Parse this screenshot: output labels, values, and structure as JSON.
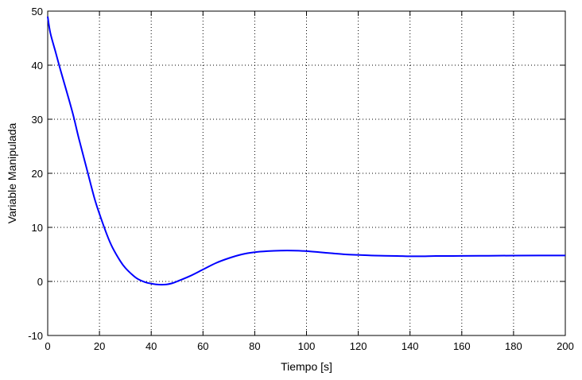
{
  "chart_data": {
    "type": "line",
    "title": "",
    "xlabel": "Tiempo [s]",
    "ylabel": "Variable Manipulada",
    "xlim": [
      0,
      200
    ],
    "ylim": [
      -10,
      50
    ],
    "xticks": [
      0,
      20,
      40,
      60,
      80,
      100,
      120,
      140,
      160,
      180,
      200
    ],
    "yticks": [
      -10,
      0,
      10,
      20,
      30,
      40,
      50
    ],
    "grid": true,
    "legend": "none",
    "series": [
      {
        "color": "#0000ff",
        "x": [
          0,
          1,
          3,
          5,
          8,
          10,
          12,
          15,
          18,
          20,
          23,
          25,
          28,
          30,
          33,
          35,
          38,
          40,
          42,
          44,
          46,
          48,
          50,
          55,
          60,
          65,
          70,
          75,
          80,
          85,
          90,
          95,
          100,
          105,
          110,
          115,
          120,
          125,
          130,
          135,
          140,
          145,
          150,
          160,
          170,
          180,
          190,
          200
        ],
        "y": [
          49,
          46,
          42.5,
          39,
          34,
          30.5,
          26.5,
          21,
          15.5,
          12.5,
          8.5,
          6.3,
          3.8,
          2.5,
          1.1,
          0.4,
          -0.2,
          -0.4,
          -0.55,
          -0.6,
          -0.55,
          -0.35,
          0.0,
          1.0,
          2.2,
          3.4,
          4.3,
          5.0,
          5.4,
          5.6,
          5.7,
          5.7,
          5.6,
          5.4,
          5.2,
          5.0,
          4.9,
          4.8,
          4.75,
          4.7,
          4.65,
          4.65,
          4.7,
          4.72,
          4.75,
          4.78,
          4.8,
          4.8
        ]
      }
    ]
  }
}
